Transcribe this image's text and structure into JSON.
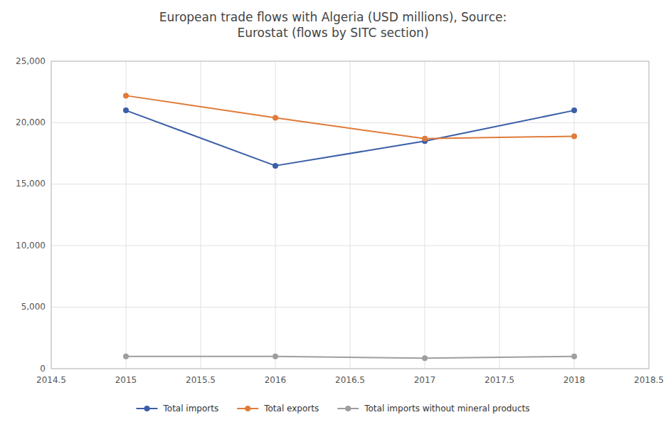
{
  "chart_data": {
    "type": "line",
    "title": "European trade flows with Algeria (USD millions), Source:\nEurostat (flows by SITC section)",
    "x": [
      2015,
      2016,
      2017,
      2018
    ],
    "series": [
      {
        "name": "Total imports",
        "color": "#3A5EA8",
        "values": [
          21000,
          16500,
          18500,
          21000
        ]
      },
      {
        "name": "Total exports",
        "color": "#E07B39",
        "values": [
          22200,
          20400,
          18700,
          18900
        ]
      },
      {
        "name": "Total imports without mineral products",
        "color": "#9E9E9E",
        "values": [
          1000,
          1000,
          850,
          1000
        ]
      }
    ],
    "xlim": [
      2014.5,
      2018.5
    ],
    "xticks": [
      2014.5,
      2015,
      2015.5,
      2016,
      2016.5,
      2017,
      2017.5,
      2018,
      2018.5
    ],
    "ylim": [
      0,
      25000
    ],
    "yticks": [
      0,
      {
        "value": 5000,
        "label": "5,000"
      },
      {
        "value": 10000,
        "label": "10,000"
      },
      {
        "value": 15000,
        "label": "15,000"
      },
      {
        "value": 20000,
        "label": "20,000"
      },
      {
        "value": 25000,
        "label": "25,000"
      }
    ],
    "grid": true,
    "legend": "bottom",
    "marker": "circle"
  }
}
